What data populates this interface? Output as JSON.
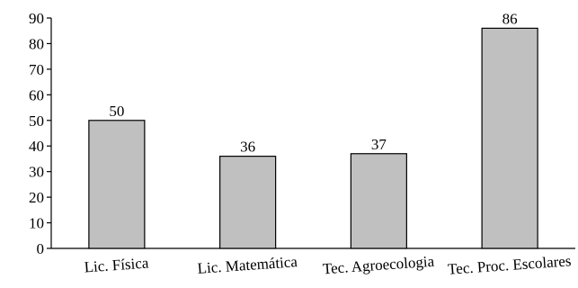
{
  "chart_data": {
    "type": "bar",
    "categories": [
      "Lic. Física",
      "Lic. Matemática",
      "Tec. Agroecologia",
      "Tec. Proc. Escolares"
    ],
    "values": [
      50,
      36,
      37,
      86
    ],
    "data_labels": [
      "50",
      "36",
      "37",
      "86"
    ],
    "title": "",
    "xlabel": "",
    "ylabel": "",
    "ylim": [
      0,
      90
    ],
    "yticks": [
      "0",
      "10",
      "20",
      "30",
      "40",
      "50",
      "60",
      "70",
      "80",
      "90"
    ],
    "grid": false,
    "legend": "none",
    "bar_color": "#c0c0c0",
    "edge_color": "#000000"
  }
}
